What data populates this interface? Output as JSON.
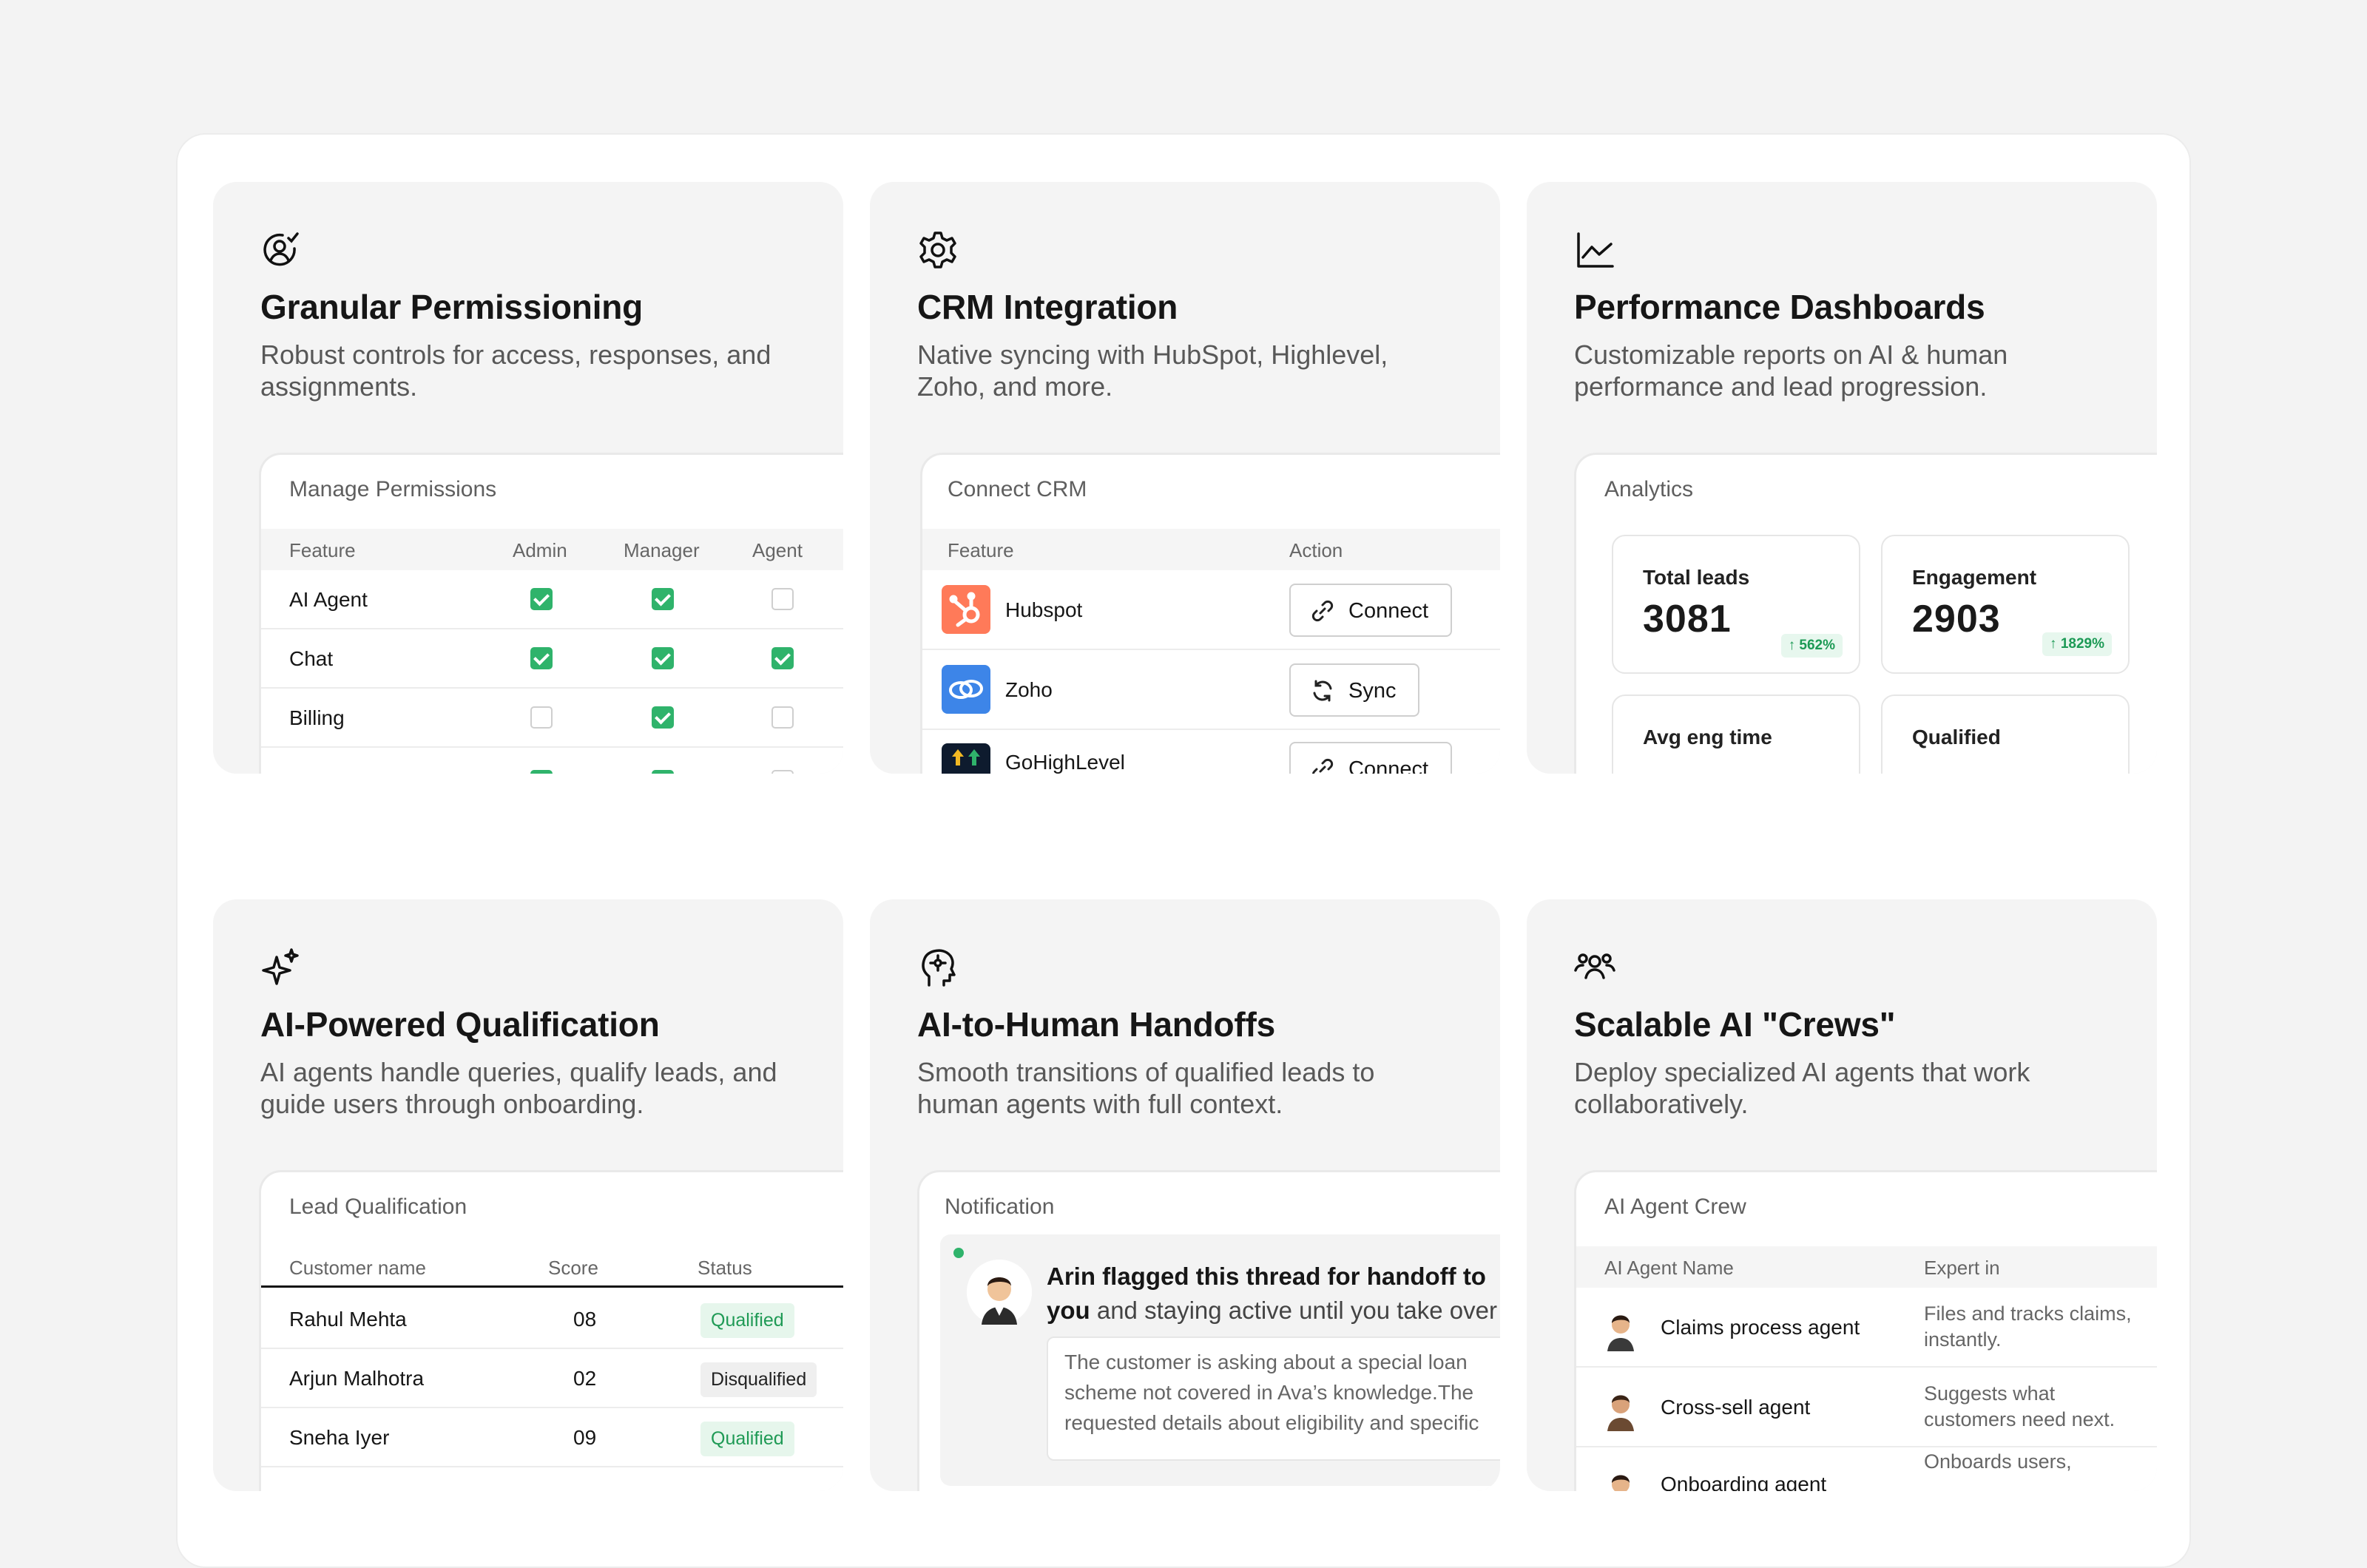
{
  "cards": {
    "permissions": {
      "title": "Granular Permissioning",
      "desc": "Robust controls for access, responses, and assignments.",
      "panel_title": "Manage Permissions",
      "headers": [
        "Feature",
        "Admin",
        "Manager",
        "Agent"
      ],
      "rows": [
        {
          "feature": "AI Agent",
          "admin": true,
          "manager": true,
          "agent": false
        },
        {
          "feature": "Chat",
          "admin": true,
          "manager": true,
          "agent": true
        },
        {
          "feature": "Billing",
          "admin": false,
          "manager": true,
          "agent": false
        }
      ]
    },
    "crm": {
      "title": "CRM Integration",
      "desc": "Native syncing with HubSpot, Highlevel, Zoho, and more.",
      "panel_title": "Connect CRM",
      "headers": [
        "Feature",
        "Action"
      ],
      "rows": [
        {
          "name": "Hubspot",
          "action": "Connect",
          "logo_color": "#ff7a59",
          "action_icon": "link-icon"
        },
        {
          "name": "Zoho",
          "action": "Sync",
          "logo_color": "#3d85e8",
          "action_icon": "sync-icon"
        },
        {
          "name": "GoHighLevel",
          "action": "Connect",
          "logo_color": "#0e1b2e",
          "action_icon": "link-icon"
        }
      ]
    },
    "dashboards": {
      "title": "Performance Dashboards",
      "desc": "Customizable reports on AI & human performance and lead progression.",
      "panel_title": "Analytics",
      "stats": [
        {
          "label": "Total leads",
          "value": "3081",
          "delta": "↑ 562%"
        },
        {
          "label": "Engagement",
          "value": "2903",
          "delta": "↑ 1829%"
        },
        {
          "label": "Avg eng time",
          "value": "",
          "delta": ""
        },
        {
          "label": "Qualified",
          "value": "",
          "delta": ""
        }
      ]
    },
    "qualification": {
      "title": "AI-Powered Qualification",
      "desc": "AI agents handle queries, qualify leads, and guide users through onboarding.",
      "panel_title": "Lead Qualification",
      "headers": [
        "Customer name",
        "Score",
        "Status"
      ],
      "rows": [
        {
          "name": "Rahul Mehta",
          "score": "08",
          "status": "Qualified"
        },
        {
          "name": "Arjun Malhotra",
          "score": "02",
          "status": "Disqualified"
        },
        {
          "name": "Sneha Iyer",
          "score": "09",
          "status": "Qualified"
        }
      ]
    },
    "handoffs": {
      "title": "AI-to-Human Handoffs",
      "desc": "Smooth transitions of qualified leads to human agents with full context.",
      "panel_title": "Notification",
      "notif_bold_1": "Arin flagged this thread for handoff to",
      "notif_bold_2": "you",
      "notif_rest": " and staying active until you take over",
      "quote_1": "The customer is asking about a special loan",
      "quote_2": "scheme not covered in Ava’s knowledge.The",
      "quote_3": "requested details about eligibility and specific"
    },
    "crews": {
      "title": "Scalable AI \"Crews\"",
      "desc": "Deploy specialized AI agents that work collaboratively.",
      "panel_title": "AI Agent Crew",
      "headers": [
        "AI Agent Name",
        "Expert in"
      ],
      "rows": [
        {
          "name": "Claims process agent",
          "expert_1": "Files and tracks claims,",
          "expert_2": "instantly."
        },
        {
          "name": "Cross-sell agent",
          "expert_1": "Suggests what",
          "expert_2": "customers need next."
        },
        {
          "name": "Onboarding agent",
          "expert_1": "Onboards users,",
          "expert_2": ""
        }
      ]
    }
  },
  "colors": {
    "check_green": "#2fb36b",
    "status_green": "#1f9a55",
    "background": "#f3f3f3"
  }
}
